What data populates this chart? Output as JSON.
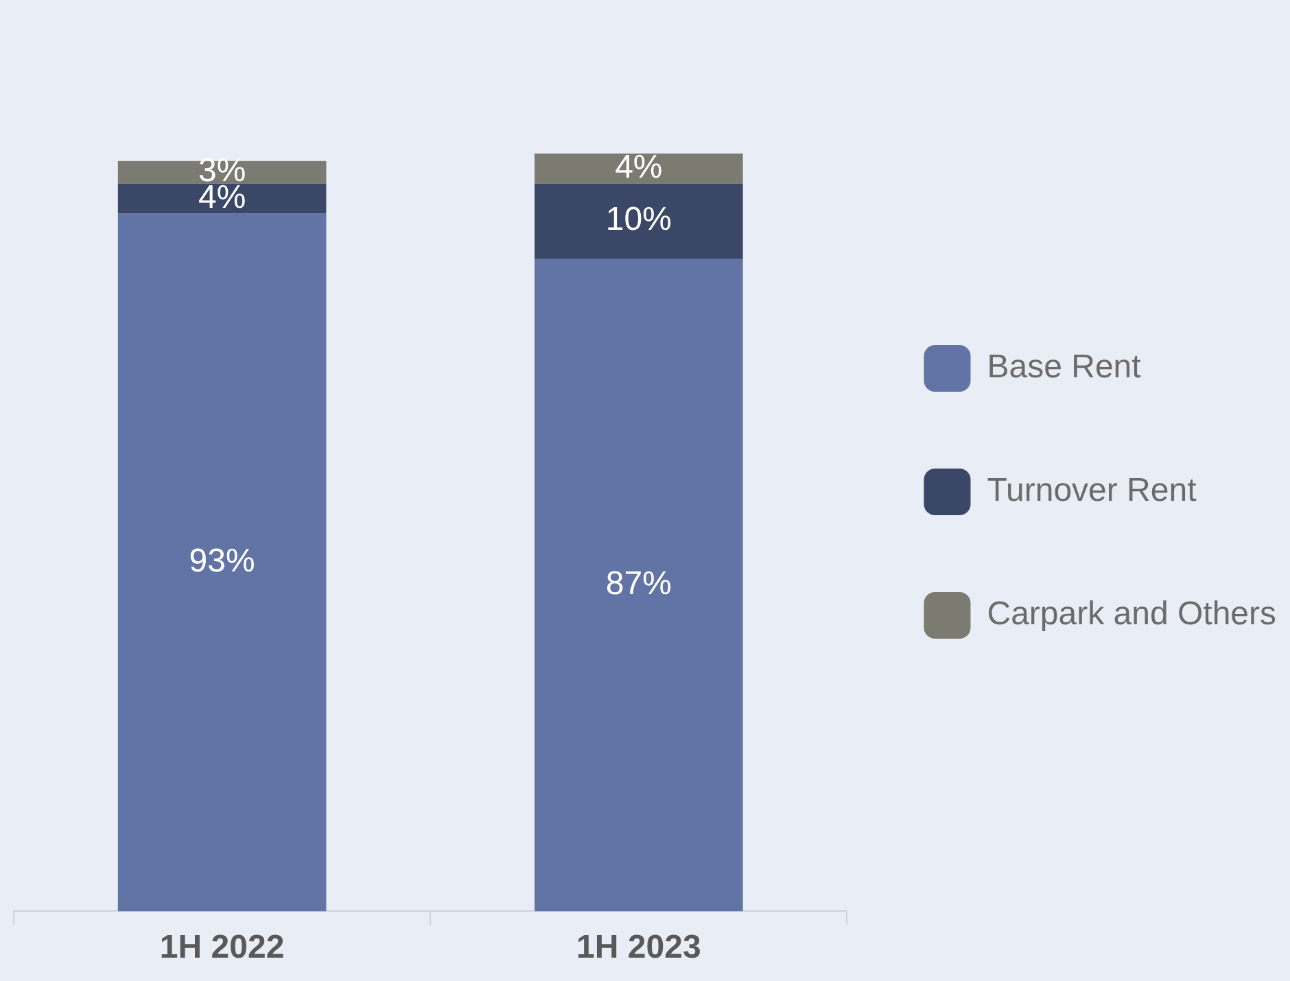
{
  "chart_data": {
    "type": "bar",
    "stacked": true,
    "categories": [
      "1H 2022",
      "1H 2023"
    ],
    "legend": "right",
    "grid": false,
    "tick_labels": "x",
    "series": [
      {
        "name": "Base Rent",
        "color": "#6274a6",
        "values": [
          93,
          87
        ],
        "value_labels": [
          "93%",
          "87%"
        ]
      },
      {
        "name": "Turnover Rent",
        "color": "#3a4766",
        "values": [
          4,
          10
        ],
        "value_labels": [
          "4%",
          "10%"
        ]
      },
      {
        "name": "Carpark and Others",
        "color": "#7b7b72",
        "values": [
          3,
          4
        ],
        "value_labels": [
          "3%",
          "4%"
        ]
      }
    ]
  }
}
